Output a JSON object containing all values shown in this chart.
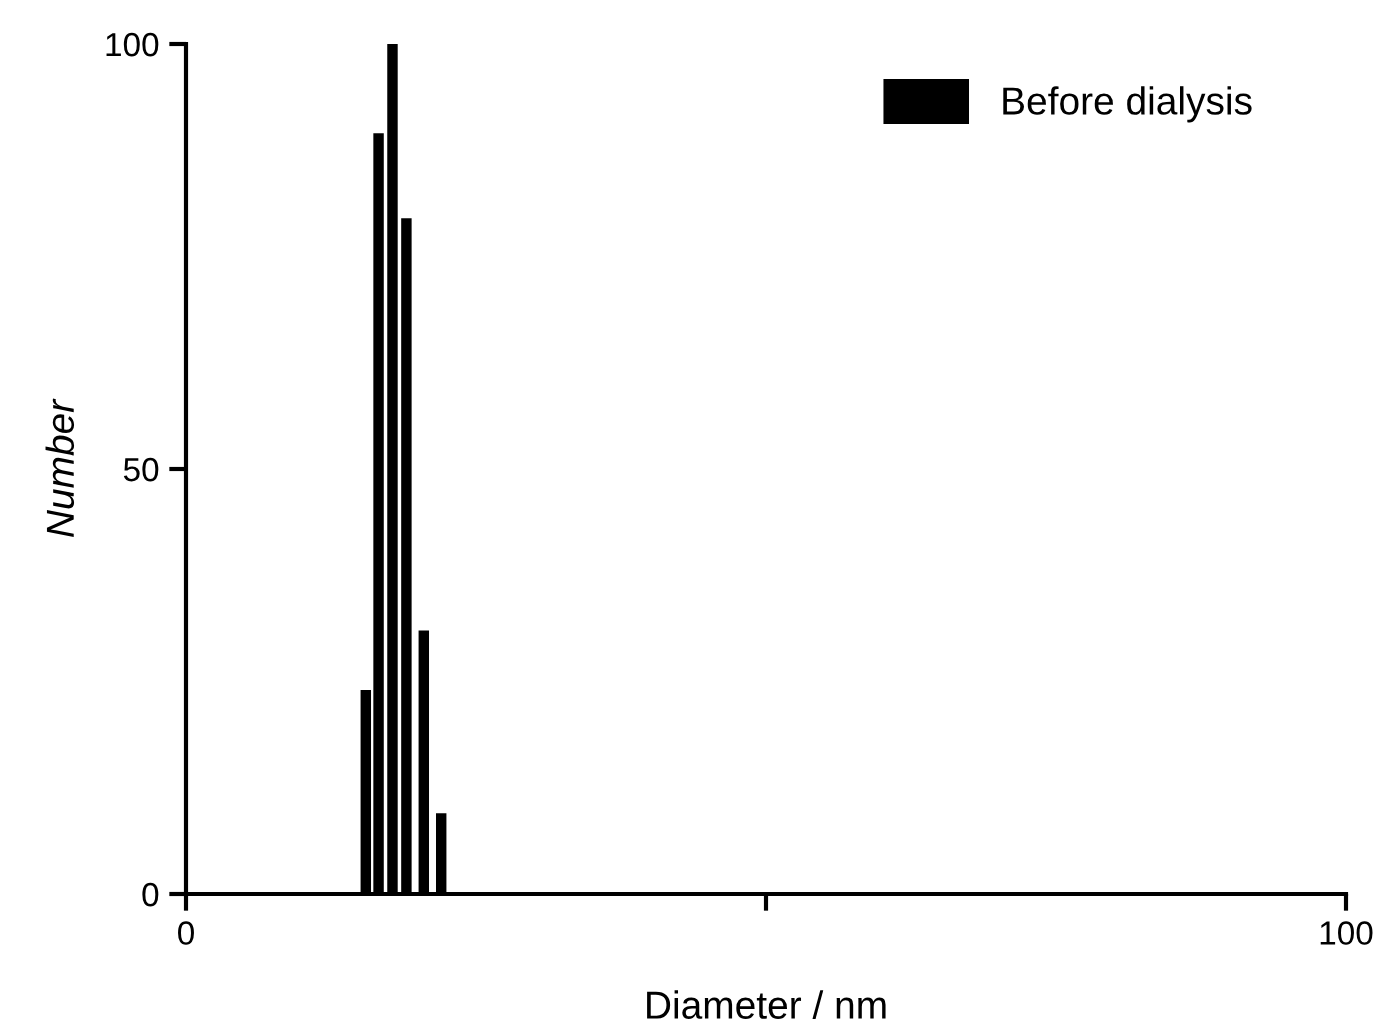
{
  "chart_data": {
    "type": "bar",
    "xlabel": "Diameter / nm",
    "ylabel": "Number",
    "x": [
      15.5,
      16.6,
      17.8,
      19.0,
      20.5,
      22.0
    ],
    "series": [
      {
        "name": "Before dialysis",
        "color": "#000000",
        "values": [
          24,
          89.5,
          100,
          79.5,
          31,
          9.5
        ]
      }
    ],
    "xlim": [
      0,
      100
    ],
    "xticks": [
      0,
      {
        "value": 50,
        "label": null
      },
      100
    ],
    "ylim": [
      0,
      100
    ],
    "yticks": [
      0,
      50,
      100
    ],
    "grid": false,
    "legend": "top right"
  }
}
